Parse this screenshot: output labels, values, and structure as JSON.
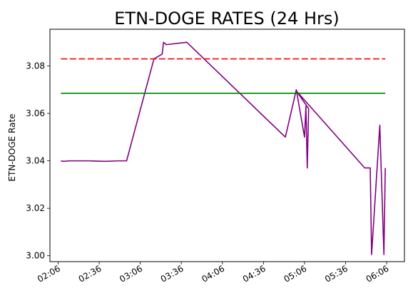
{
  "chart_data": {
    "type": "line",
    "title": "ETN-DOGE RATES (24 Hrs)",
    "xlabel": "",
    "ylabel": "ETN-DOGE Rate",
    "x_tick_labels": [
      "02:06",
      "02:36",
      "03:06",
      "03:36",
      "04:06",
      "04:36",
      "05:06",
      "05:36",
      "06:06"
    ],
    "y_ticks": [
      3.0,
      3.02,
      3.04,
      3.06,
      3.08
    ],
    "y_tick_labels": [
      "3.00",
      "3.02",
      "3.04",
      "3.06",
      "3.08"
    ],
    "ylim": [
      2.9975,
      3.0955
    ],
    "xlim": [
      "02:00",
      "06:19"
    ],
    "grid": false,
    "series": [
      {
        "color": "#800080",
        "style": "solid",
        "points": [
          [
            "02:08",
            3.04
          ],
          [
            "02:10",
            3.0398
          ],
          [
            "02:14",
            3.04
          ],
          [
            "02:28",
            3.04
          ],
          [
            "02:40",
            3.0398
          ],
          [
            "02:50",
            3.04
          ],
          [
            "02:56",
            3.04
          ],
          [
            "03:16",
            3.083
          ],
          [
            "03:22",
            3.085
          ],
          [
            "03:23",
            3.09
          ],
          [
            "03:25",
            3.089
          ],
          [
            "03:40",
            3.09
          ],
          [
            "04:52",
            3.05
          ],
          [
            "05:00",
            3.07
          ],
          [
            "05:06",
            3.05
          ],
          [
            "05:07",
            3.063
          ],
          [
            "05:08",
            3.037
          ],
          [
            "05:09",
            3.062
          ],
          [
            "05:00",
            3.0695
          ],
          [
            "05:50",
            3.037
          ],
          [
            "05:54",
            3.037
          ],
          [
            "05:55",
            3.0005
          ],
          [
            "06:01",
            3.055
          ],
          [
            "06:04",
            3.0005
          ],
          [
            "06:05",
            3.037
          ]
        ]
      },
      {
        "color": "#ff0000",
        "style": "dashed",
        "points": [
          [
            "02:08",
            3.083
          ],
          [
            "06:05",
            3.083
          ]
        ]
      },
      {
        "color": "#008000",
        "style": "solid",
        "points": [
          [
            "02:08",
            3.0685
          ],
          [
            "06:05",
            3.0685
          ]
        ]
      }
    ]
  }
}
